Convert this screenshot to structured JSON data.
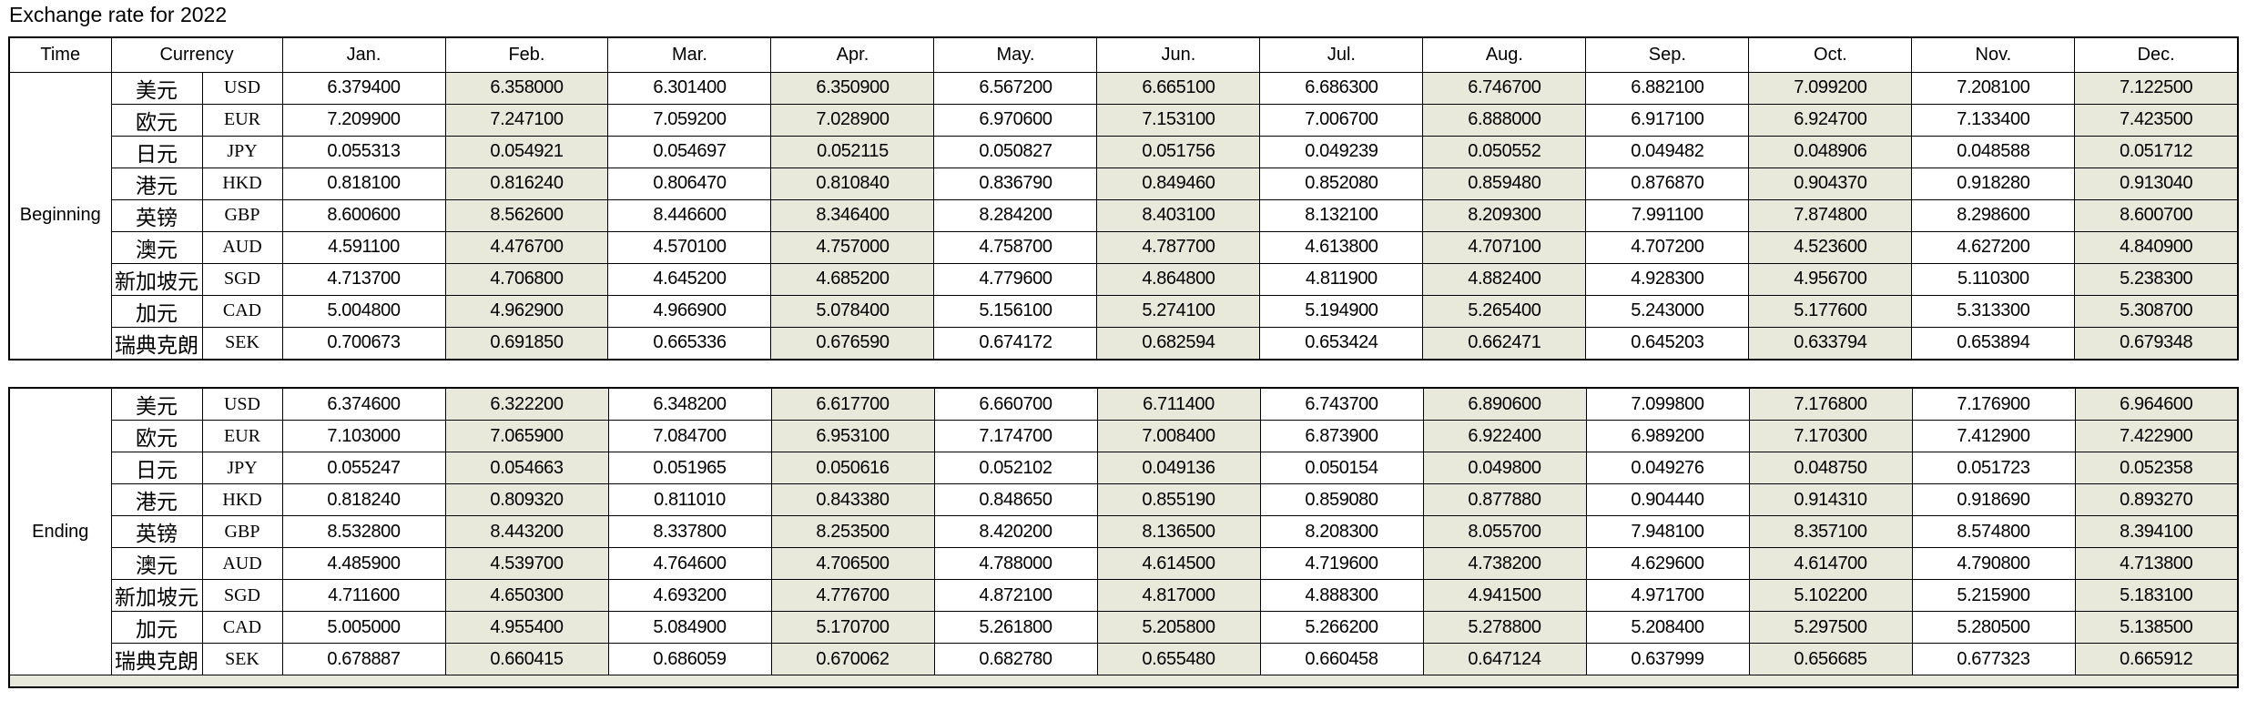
{
  "title": "Exchange rate for 2022",
  "colors": {
    "shaded_column_bg": "#e8e8db",
    "border": "#000000",
    "background": "#ffffff"
  },
  "table": {
    "header": {
      "time_label": "Time",
      "currency_label": "Currency",
      "months": [
        "Jan.",
        "Feb.",
        "Mar.",
        "Apr.",
        "May.",
        "Jun.",
        "Jul.",
        "Aug.",
        "Sep.",
        "Oct.",
        "Nov.",
        "Dec."
      ]
    },
    "shaded_months": [
      "Feb.",
      "Apr.",
      "Jun.",
      "Aug.",
      "Oct.",
      "Dec."
    ],
    "sections": [
      {
        "label": "Beginning",
        "rows": [
          {
            "name": "美元",
            "code": "USD",
            "values": [
              "6.379400",
              "6.358000",
              "6.301400",
              "6.350900",
              "6.567200",
              "6.665100",
              "6.686300",
              "6.746700",
              "6.882100",
              "7.099200",
              "7.208100",
              "7.122500"
            ]
          },
          {
            "name": "欧元",
            "code": "EUR",
            "values": [
              "7.209900",
              "7.247100",
              "7.059200",
              "7.028900",
              "6.970600",
              "7.153100",
              "7.006700",
              "6.888000",
              "6.917100",
              "6.924700",
              "7.133400",
              "7.423500"
            ]
          },
          {
            "name": "日元",
            "code": "JPY",
            "values": [
              "0.055313",
              "0.054921",
              "0.054697",
              "0.052115",
              "0.050827",
              "0.051756",
              "0.049239",
              "0.050552",
              "0.049482",
              "0.048906",
              "0.048588",
              "0.051712"
            ]
          },
          {
            "name": "港元",
            "code": "HKD",
            "values": [
              "0.818100",
              "0.816240",
              "0.806470",
              "0.810840",
              "0.836790",
              "0.849460",
              "0.852080",
              "0.859480",
              "0.876870",
              "0.904370",
              "0.918280",
              "0.913040"
            ]
          },
          {
            "name": "英镑",
            "code": "GBP",
            "values": [
              "8.600600",
              "8.562600",
              "8.446600",
              "8.346400",
              "8.284200",
              "8.403100",
              "8.132100",
              "8.209300",
              "7.991100",
              "7.874800",
              "8.298600",
              "8.600700"
            ]
          },
          {
            "name": "澳元",
            "code": "AUD",
            "values": [
              "4.591100",
              "4.476700",
              "4.570100",
              "4.757000",
              "4.758700",
              "4.787700",
              "4.613800",
              "4.707100",
              "4.707200",
              "4.523600",
              "4.627200",
              "4.840900"
            ]
          },
          {
            "name": "新加坡元",
            "code": "SGD",
            "values": [
              "4.713700",
              "4.706800",
              "4.645200",
              "4.685200",
              "4.779600",
              "4.864800",
              "4.811900",
              "4.882400",
              "4.928300",
              "4.956700",
              "5.110300",
              "5.238300"
            ]
          },
          {
            "name": "加元",
            "code": "CAD",
            "values": [
              "5.004800",
              "4.962900",
              "4.966900",
              "5.078400",
              "5.156100",
              "5.274100",
              "5.194900",
              "5.265400",
              "5.243000",
              "5.177600",
              "5.313300",
              "5.308700"
            ]
          },
          {
            "name": "瑞典克朗",
            "code": "SEK",
            "values": [
              "0.700673",
              "0.691850",
              "0.665336",
              "0.676590",
              "0.674172",
              "0.682594",
              "0.653424",
              "0.662471",
              "0.645203",
              "0.633794",
              "0.653894",
              "0.679348"
            ]
          }
        ]
      },
      {
        "label": "Ending",
        "rows": [
          {
            "name": "美元",
            "code": "USD",
            "values": [
              "6.374600",
              "6.322200",
              "6.348200",
              "6.617700",
              "6.660700",
              "6.711400",
              "6.743700",
              "6.890600",
              "7.099800",
              "7.176800",
              "7.176900",
              "6.964600"
            ]
          },
          {
            "name": "欧元",
            "code": "EUR",
            "values": [
              "7.103000",
              "7.065900",
              "7.084700",
              "6.953100",
              "7.174700",
              "7.008400",
              "6.873900",
              "6.922400",
              "6.989200",
              "7.170300",
              "7.412900",
              "7.422900"
            ]
          },
          {
            "name": "日元",
            "code": "JPY",
            "values": [
              "0.055247",
              "0.054663",
              "0.051965",
              "0.050616",
              "0.052102",
              "0.049136",
              "0.050154",
              "0.049800",
              "0.049276",
              "0.048750",
              "0.051723",
              "0.052358"
            ]
          },
          {
            "name": "港元",
            "code": "HKD",
            "values": [
              "0.818240",
              "0.809320",
              "0.811010",
              "0.843380",
              "0.848650",
              "0.855190",
              "0.859080",
              "0.877880",
              "0.904440",
              "0.914310",
              "0.918690",
              "0.893270"
            ]
          },
          {
            "name": "英镑",
            "code": "GBP",
            "values": [
              "8.532800",
              "8.443200",
              "8.337800",
              "8.253500",
              "8.420200",
              "8.136500",
              "8.208300",
              "8.055700",
              "7.948100",
              "8.357100",
              "8.574800",
              "8.394100"
            ]
          },
          {
            "name": "澳元",
            "code": "AUD",
            "values": [
              "4.485900",
              "4.539700",
              "4.764600",
              "4.706500",
              "4.788000",
              "4.614500",
              "4.719600",
              "4.738200",
              "4.629600",
              "4.614700",
              "4.790800",
              "4.713800"
            ]
          },
          {
            "name": "新加坡元",
            "code": "SGD",
            "values": [
              "4.711600",
              "4.650300",
              "4.693200",
              "4.776700",
              "4.872100",
              "4.817000",
              "4.888300",
              "4.941500",
              "4.971700",
              "5.102200",
              "5.215900",
              "5.183100"
            ]
          },
          {
            "name": "加元",
            "code": "CAD",
            "values": [
              "5.005000",
              "4.955400",
              "5.084900",
              "5.170700",
              "5.261800",
              "5.205800",
              "5.266200",
              "5.278800",
              "5.208400",
              "5.297500",
              "5.280500",
              "5.138500"
            ]
          },
          {
            "name": "瑞典克朗",
            "code": "SEK",
            "values": [
              "0.678887",
              "0.660415",
              "0.686059",
              "0.670062",
              "0.682780",
              "0.655480",
              "0.660458",
              "0.647124",
              "0.637999",
              "0.656685",
              "0.677323",
              "0.665912"
            ]
          }
        ]
      }
    ]
  }
}
